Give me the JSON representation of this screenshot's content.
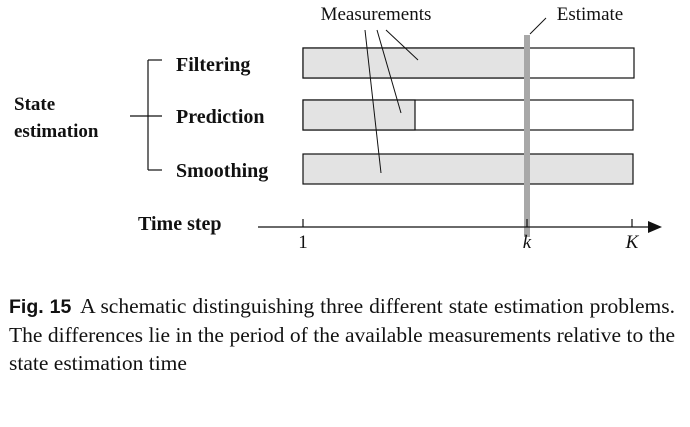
{
  "labels": {
    "measurements": "Measurements",
    "estimate": "Estimate",
    "state_estimation_line1": "State",
    "state_estimation_line2": "estimation",
    "filtering": "Filtering",
    "prediction": "Prediction",
    "smoothing": "Smoothing",
    "time_step": "Time step"
  },
  "axis": {
    "tick_start": "1",
    "tick_k": "k",
    "tick_end": "K"
  },
  "bars": [
    {
      "name": "Filtering",
      "measured_until": "k"
    },
    {
      "name": "Prediction",
      "measured_until": "before k"
    },
    {
      "name": "Smoothing",
      "measured_until": "K"
    }
  ],
  "colors": {
    "measured_fill": "#e3e3e3",
    "estimate_line": "#a8a8a8",
    "stroke": "#111111"
  },
  "caption": {
    "label": "Fig. 15",
    "text": "A schematic distinguishing three different state estimation problems. The differences lie in the period of the available measurements relative to the state estimation time"
  }
}
